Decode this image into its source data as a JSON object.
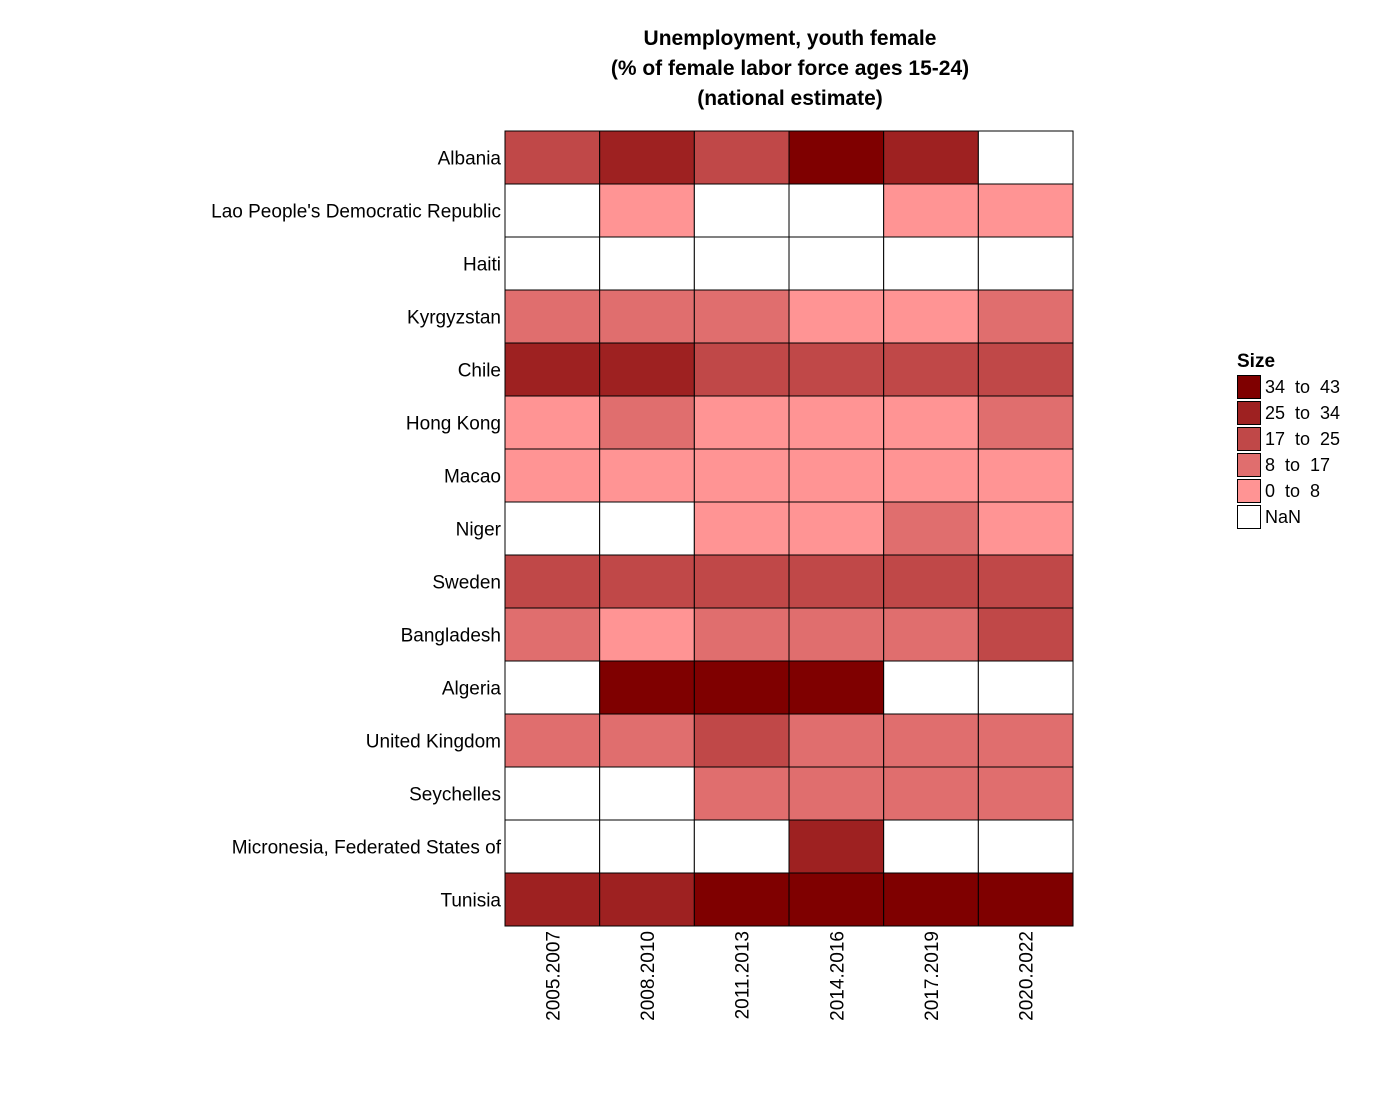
{
  "chart_data": {
    "type": "heatmap",
    "title_lines": [
      "Unemployment, youth female",
      "(% of female labor force ages 15-24)",
      "(national estimate)"
    ],
    "xlabel": "",
    "ylabel": "",
    "categories_x": [
      "2005.2007",
      "2008.2010",
      "2011.2013",
      "2014.2016",
      "2017.2019",
      "2020.2022"
    ],
    "categories_y": [
      "Albania",
      "Lao People's Democratic Republic",
      "Haiti",
      "Kyrgyzstan",
      "Chile",
      "Hong Kong",
      "Macao",
      "Niger",
      "Sweden",
      "Bangladesh",
      "Algeria",
      "United Kingdom",
      "Seychelles",
      "Micronesia, Federated States of",
      "Tunisia"
    ],
    "values": [
      [
        21,
        30,
        21,
        39,
        30,
        null
      ],
      [
        null,
        4,
        null,
        null,
        4,
        4
      ],
      [
        null,
        null,
        null,
        null,
        null,
        null
      ],
      [
        12,
        12,
        12,
        4,
        4,
        12
      ],
      [
        30,
        30,
        21,
        21,
        21,
        21
      ],
      [
        4,
        12,
        4,
        4,
        4,
        12
      ],
      [
        4,
        4,
        4,
        4,
        4,
        4
      ],
      [
        null,
        null,
        4,
        4,
        12,
        4
      ],
      [
        21,
        21,
        21,
        21,
        21,
        21
      ],
      [
        12,
        4,
        12,
        12,
        12,
        21
      ],
      [
        null,
        39,
        39,
        39,
        null,
        null
      ],
      [
        12,
        12,
        21,
        12,
        12,
        12
      ],
      [
        null,
        null,
        12,
        12,
        12,
        12
      ],
      [
        null,
        null,
        null,
        30,
        null,
        null
      ],
      [
        30,
        30,
        39,
        39,
        39,
        39
      ]
    ],
    "legend": {
      "title": "Size",
      "placement": "right",
      "bins": [
        {
          "label": "34  to  43",
          "min": 34,
          "max": 43,
          "color": "#7f0000"
        },
        {
          "label": "25  to  34",
          "min": 25,
          "max": 34,
          "color": "#9e2121"
        },
        {
          "label": "17  to  25",
          "min": 17,
          "max": 25,
          "color": "#c04848"
        },
        {
          "label": "8  to  17",
          "min": 8,
          "max": 17,
          "color": "#e06e6e"
        },
        {
          "label": "0  to  8",
          "min": 0,
          "max": 8,
          "color": "#ff9494"
        },
        {
          "label": "NaN",
          "min": null,
          "max": null,
          "color": "#ffffff"
        }
      ]
    }
  }
}
